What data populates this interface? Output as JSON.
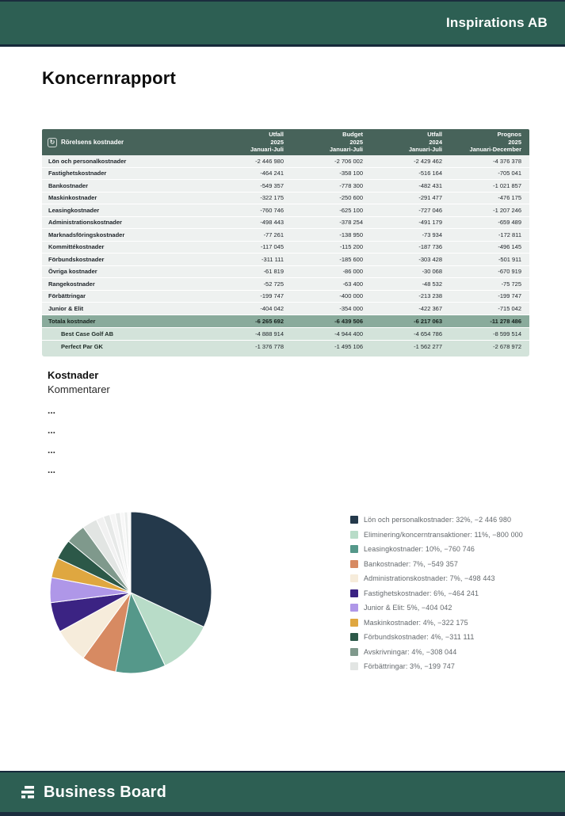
{
  "banner": {
    "company": "Inspirations AB"
  },
  "page_title": "Koncernrapport",
  "table": {
    "title": "Rörelsens kostnader",
    "icon": "refresh-icon",
    "columns": [
      {
        "lines": [
          "Utfall",
          "2025",
          "Januari-Juli"
        ]
      },
      {
        "lines": [
          "Budget",
          "2025",
          "Januari-Juli"
        ]
      },
      {
        "lines": [
          "Utfall",
          "2024",
          "Januari-Juli"
        ]
      },
      {
        "lines": [
          "Prognos",
          "2025",
          "Januari-December"
        ]
      }
    ],
    "rows": [
      {
        "label": "Lön och personalkostnader",
        "values": [
          "-2 446 980",
          "-2 706 002",
          "-2 429 462",
          "-4 376 378"
        ]
      },
      {
        "label": "Fastighetskostnader",
        "values": [
          "-464 241",
          "-358 100",
          "-516 164",
          "-705 041"
        ]
      },
      {
        "label": "Bankostnader",
        "values": [
          "-549 357",
          "-778 300",
          "-482 431",
          "-1 021 857"
        ]
      },
      {
        "label": "Maskinkostnader",
        "values": [
          "-322 175",
          "-250 600",
          "-291 477",
          "-476 175"
        ]
      },
      {
        "label": "Leasingkostnader",
        "values": [
          "-760 746",
          "-625 100",
          "-727 046",
          "-1 207 246"
        ]
      },
      {
        "label": "Administrationskostnader",
        "values": [
          "-498 443",
          "-378 254",
          "-491 179",
          "-659 489"
        ]
      },
      {
        "label": "Marknadsföringskostnader",
        "values": [
          "-77 261",
          "-138 950",
          "-73 934",
          "-172 811"
        ]
      },
      {
        "label": "Kommittékostnader",
        "values": [
          "-117 045",
          "-115 200",
          "-187 736",
          "-496 145"
        ]
      },
      {
        "label": "Förbundskostnader",
        "values": [
          "-311 111",
          "-185 600",
          "-303 428",
          "-501 911"
        ]
      },
      {
        "label": "Övriga kostnader",
        "values": [
          "-61 819",
          "-86 000",
          "-30 068",
          "-670 919"
        ]
      },
      {
        "label": "Rangekostnader",
        "values": [
          "-52 725",
          "-63 400",
          "-48 532",
          "-75 725"
        ]
      },
      {
        "label": "Förbättringar",
        "values": [
          "-199 747",
          "-400 000",
          "-213 238",
          "-199 747"
        ]
      },
      {
        "label": "Junior & Elit",
        "values": [
          "-404 042",
          "-354 000",
          "-422 367",
          "-715 042"
        ]
      }
    ],
    "total_row": {
      "label": "Totala kostnader",
      "values": [
        "-6 265 692",
        "-6 439 506",
        "-6 217 063",
        "-11 278 486"
      ]
    },
    "subsidiary_rows": [
      {
        "label": "Best Case Golf AB",
        "values": [
          "-4 888 914",
          "-4 944 400",
          "-4 654 786",
          "-8 599 514"
        ]
      },
      {
        "label": "Perfect Par GK",
        "values": [
          "-1 376 778",
          "-1 495 106",
          "-1 562 277",
          "-2 678 972"
        ]
      }
    ]
  },
  "comments": {
    "heading": "Kostnader",
    "subheading": "Kommentarer",
    "lines": [
      "...",
      "...",
      "...",
      "..."
    ]
  },
  "chart_data": {
    "type": "pie",
    "title": "",
    "legend_position": "right",
    "slices": [
      {
        "label": "Lön och personalkostnader",
        "percent": 32,
        "amount": "−2 446 980",
        "color": "#24394b"
      },
      {
        "label": "Eliminering/koncerntransaktioner",
        "percent": 11,
        "amount": "−800 000",
        "color": "#b8dcc8"
      },
      {
        "label": "Leasingkostnader",
        "percent": 10,
        "amount": "−760 746",
        "color": "#55988a"
      },
      {
        "label": "Bankostnader",
        "percent": 7,
        "amount": "−549 357",
        "color": "#d78a62"
      },
      {
        "label": "Administrationskostnader",
        "percent": 7,
        "amount": "−498 443",
        "color": "#f6ecdb"
      },
      {
        "label": "Fastighetskostnader",
        "percent": 6,
        "amount": "−464 241",
        "color": "#3b2383"
      },
      {
        "label": "Junior & Elit",
        "percent": 5,
        "amount": "−404 042",
        "color": "#af97e8"
      },
      {
        "label": "Maskinkostnader",
        "percent": 4,
        "amount": "−322 175",
        "color": "#dfa740"
      },
      {
        "label": "Förbundskostnader",
        "percent": 4,
        "amount": "−311 111",
        "color": "#2c5848"
      },
      {
        "label": "Avskrivningar",
        "percent": 4,
        "amount": "−308 044",
        "color": "#7f998c"
      },
      {
        "label": "Förbättringar",
        "percent": 3,
        "amount": "−199 747",
        "color": "#e2e5e3"
      }
    ],
    "small_slices": [
      {
        "percent": 1.5,
        "color": "#f1f1f1"
      },
      {
        "percent": 1.3,
        "color": "#e7e9e8"
      },
      {
        "percent": 1.1,
        "color": "#f5f5f5"
      },
      {
        "percent": 1.0,
        "color": "#e9ebea"
      },
      {
        "percent": 0.8,
        "color": "#f7f7f7"
      },
      {
        "percent": 0.7,
        "color": "#ebedec"
      },
      {
        "percent": 0.6,
        "color": "#f9f9f9"
      }
    ]
  },
  "footer": {
    "brand": "Business Board"
  }
}
